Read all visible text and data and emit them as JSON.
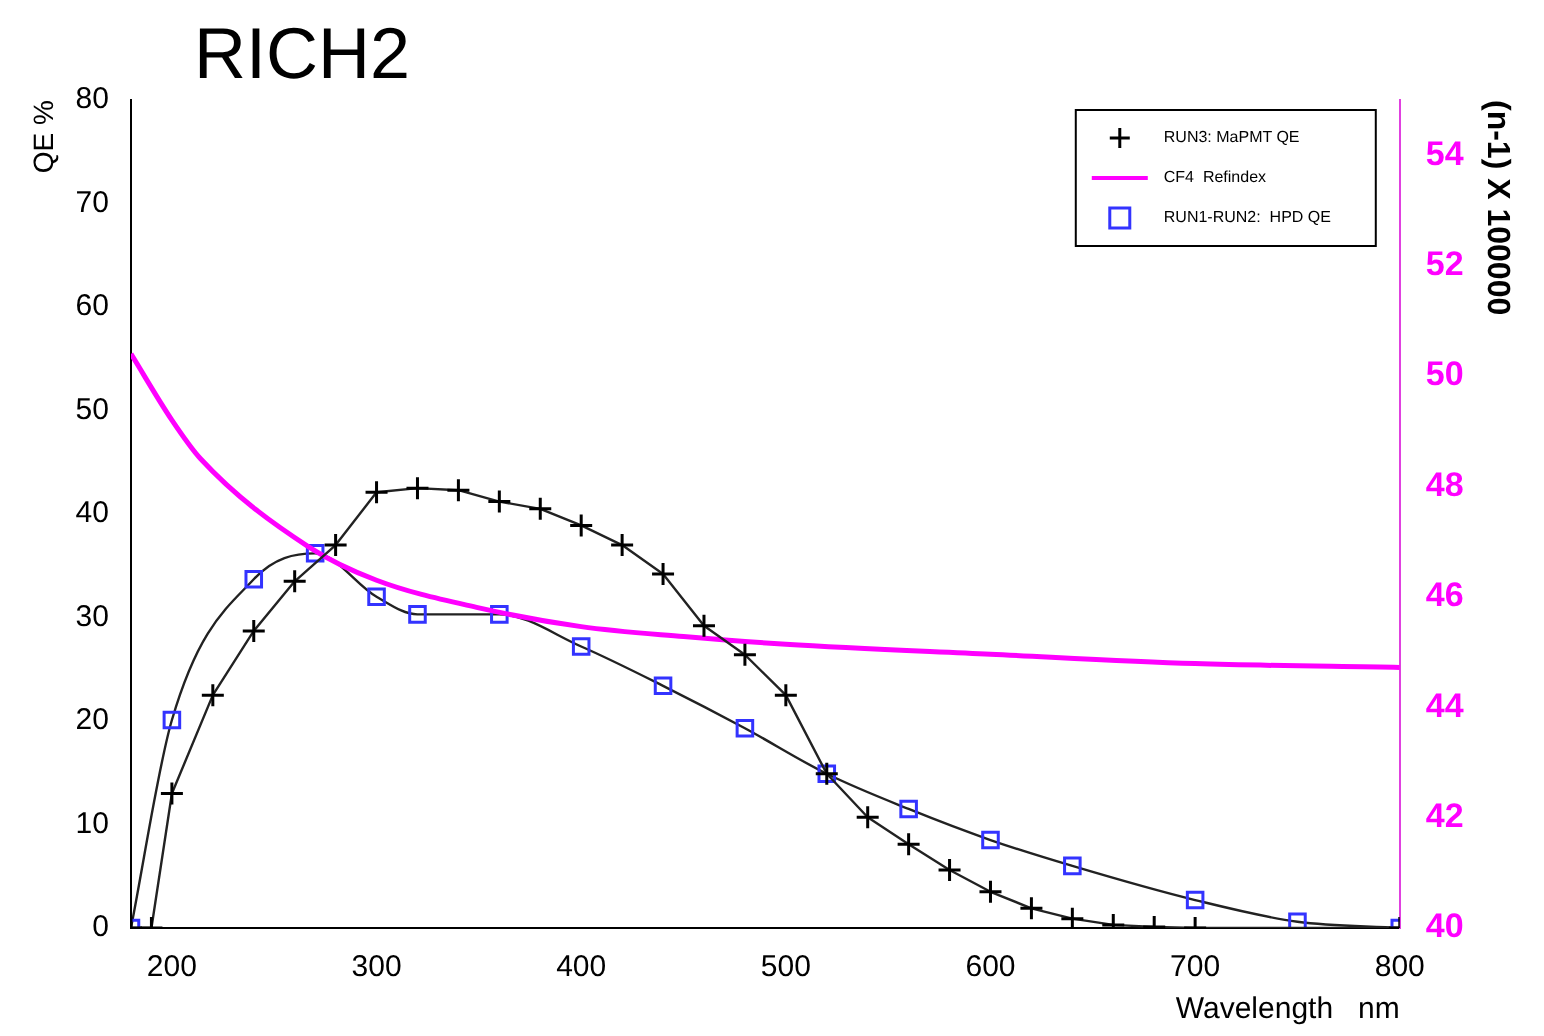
{
  "chart_data": {
    "type": "line",
    "title": "RICH2",
    "xlabel": "Wavelength   nm",
    "ylabel": "QE %",
    "y2label": "(n-1) X 100000",
    "xlim": [
      180,
      800
    ],
    "xticks": [
      200,
      300,
      400,
      500,
      600,
      700,
      800
    ],
    "ylim": [
      0,
      80
    ],
    "yticks": [
      0,
      10,
      20,
      30,
      40,
      50,
      60,
      70,
      80
    ],
    "y2lim": [
      40,
      55
    ],
    "y2ticks": [
      40,
      42,
      44,
      46,
      48,
      50,
      52,
      54
    ],
    "grid": false,
    "legend": "top right",
    "line_style": "solid",
    "series": [
      {
        "name": "RUN3: MaPMT QE",
        "color": "#000000",
        "marker": "cross",
        "x": [
          180,
          190,
          200,
          220,
          240,
          260,
          280,
          300,
          320,
          340,
          360,
          380,
          400,
          420,
          440,
          460,
          480,
          500,
          520,
          540,
          560,
          580,
          600,
          620,
          640,
          660,
          680,
          700,
          800
        ],
        "values": [
          0,
          0,
          13.0,
          22.5,
          28.7,
          33.5,
          37.0,
          42.1,
          42.5,
          42.3,
          41.2,
          40.5,
          38.9,
          37.0,
          34.2,
          29.2,
          26.4,
          22.5,
          14.9,
          10.7,
          8.1,
          5.6,
          3.5,
          1.9,
          0.9,
          0.3,
          0.1,
          0,
          0
        ]
      },
      {
        "name": "CF4  Refindex",
        "color": "#ff00ff",
        "marker": "none",
        "axis": "y2",
        "x": [
          180,
          200,
          214,
          267,
          300,
          350,
          400,
          450,
          500,
          600,
          700,
          800
        ],
        "values": [
          50.4,
          49.2,
          48.5,
          46.9,
          46.3,
          45.8,
          45.46,
          45.28,
          45.14,
          44.96,
          44.79,
          44.72
        ]
      },
      {
        "name": "RUN1-RUN2:  HPD QE",
        "color": "#3333ff",
        "marker": "square",
        "x": [
          180,
          200,
          240,
          270,
          300,
          320,
          360,
          400,
          440,
          480,
          520,
          560,
          600,
          640,
          700,
          750,
          800
        ],
        "values": [
          0,
          20.1,
          33.7,
          36.2,
          32.0,
          30.3,
          30.3,
          27.2,
          23.4,
          19.3,
          14.9,
          11.5,
          8.5,
          6.0,
          2.7,
          0.6,
          0
        ]
      }
    ]
  }
}
